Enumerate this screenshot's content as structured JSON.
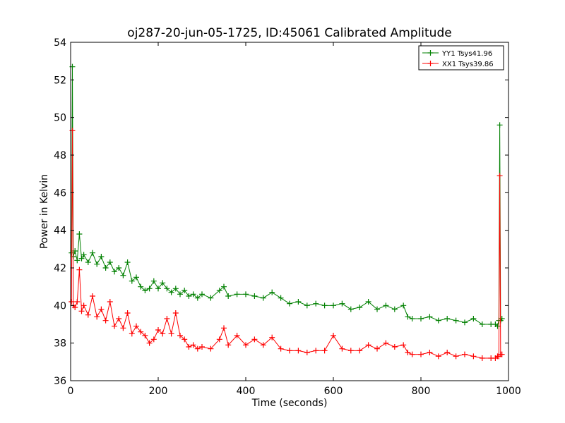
{
  "chart_data": {
    "type": "line",
    "title": "oj287-20-jun-05-1725, ID:45061 Calibrated Amplitude",
    "xlabel": "Time (seconds)",
    "ylabel": "Power in Kelvin",
    "xlim": [
      0,
      1000
    ],
    "ylim": [
      36,
      54
    ],
    "xticks": [
      0,
      200,
      400,
      600,
      800,
      1000
    ],
    "yticks": [
      36,
      38,
      40,
      42,
      44,
      46,
      48,
      50,
      52,
      54
    ],
    "grid": false,
    "legend_position": "top-right",
    "marker": "+",
    "series": [
      {
        "name": "YY1 Tsys41.96",
        "color": "#008000",
        "x": [
          2,
          4,
          6,
          10,
          15,
          20,
          25,
          30,
          40,
          50,
          60,
          70,
          80,
          90,
          100,
          110,
          120,
          130,
          140,
          150,
          160,
          170,
          180,
          190,
          200,
          210,
          220,
          230,
          240,
          250,
          260,
          270,
          280,
          290,
          300,
          320,
          340,
          350,
          360,
          380,
          400,
          420,
          440,
          460,
          480,
          500,
          520,
          540,
          560,
          580,
          600,
          620,
          640,
          660,
          680,
          700,
          720,
          740,
          760,
          770,
          780,
          800,
          820,
          840,
          860,
          880,
          900,
          920,
          940,
          960,
          970,
          975,
          978,
          980,
          982,
          985
        ],
        "y": [
          42.8,
          52.7,
          42.6,
          42.9,
          42.4,
          43.8,
          42.5,
          42.7,
          42.3,
          42.8,
          42.2,
          42.6,
          42.0,
          42.3,
          41.8,
          42.0,
          41.6,
          42.3,
          41.3,
          41.5,
          41.0,
          40.8,
          40.9,
          41.3,
          40.9,
          41.2,
          40.9,
          40.7,
          40.9,
          40.6,
          40.8,
          40.5,
          40.6,
          40.4,
          40.6,
          40.4,
          40.8,
          41.0,
          40.5,
          40.6,
          40.6,
          40.5,
          40.4,
          40.7,
          40.4,
          40.1,
          40.2,
          40.0,
          40.1,
          40.0,
          40.0,
          40.1,
          39.8,
          39.9,
          40.2,
          39.8,
          40.0,
          39.8,
          40.0,
          39.4,
          39.3,
          39.3,
          39.4,
          39.2,
          39.3,
          39.2,
          39.1,
          39.3,
          39.0,
          39.0,
          39.0,
          38.9,
          39.2,
          49.6,
          39.2,
          39.3
        ]
      },
      {
        "name": "XX1 Tsys39.86",
        "color": "#ff0000",
        "x": [
          2,
          4,
          6,
          10,
          15,
          20,
          25,
          30,
          40,
          50,
          60,
          70,
          80,
          90,
          100,
          110,
          120,
          130,
          140,
          150,
          160,
          170,
          180,
          190,
          200,
          210,
          220,
          230,
          240,
          250,
          260,
          270,
          280,
          290,
          300,
          320,
          340,
          350,
          360,
          380,
          400,
          420,
          440,
          460,
          480,
          500,
          520,
          540,
          560,
          580,
          600,
          620,
          640,
          660,
          680,
          700,
          720,
          740,
          760,
          770,
          780,
          800,
          820,
          840,
          860,
          880,
          900,
          920,
          940,
          960,
          970,
          975,
          978,
          980,
          982,
          985
        ],
        "y": [
          40.2,
          49.3,
          40.0,
          39.9,
          40.2,
          41.9,
          39.7,
          40.0,
          39.5,
          40.5,
          39.4,
          39.8,
          39.2,
          40.2,
          38.9,
          39.3,
          38.8,
          39.6,
          38.5,
          38.9,
          38.6,
          38.4,
          38.0,
          38.2,
          38.7,
          38.5,
          39.3,
          38.5,
          39.6,
          38.4,
          38.2,
          37.8,
          37.9,
          37.7,
          37.8,
          37.7,
          38.2,
          38.8,
          37.9,
          38.4,
          37.9,
          38.2,
          37.9,
          38.3,
          37.7,
          37.6,
          37.6,
          37.5,
          37.6,
          37.6,
          38.4,
          37.7,
          37.6,
          37.6,
          37.9,
          37.7,
          38.0,
          37.8,
          37.9,
          37.5,
          37.4,
          37.4,
          37.5,
          37.3,
          37.5,
          37.3,
          37.4,
          37.3,
          37.2,
          37.2,
          37.2,
          37.3,
          37.3,
          46.9,
          37.4,
          37.4
        ]
      }
    ]
  }
}
